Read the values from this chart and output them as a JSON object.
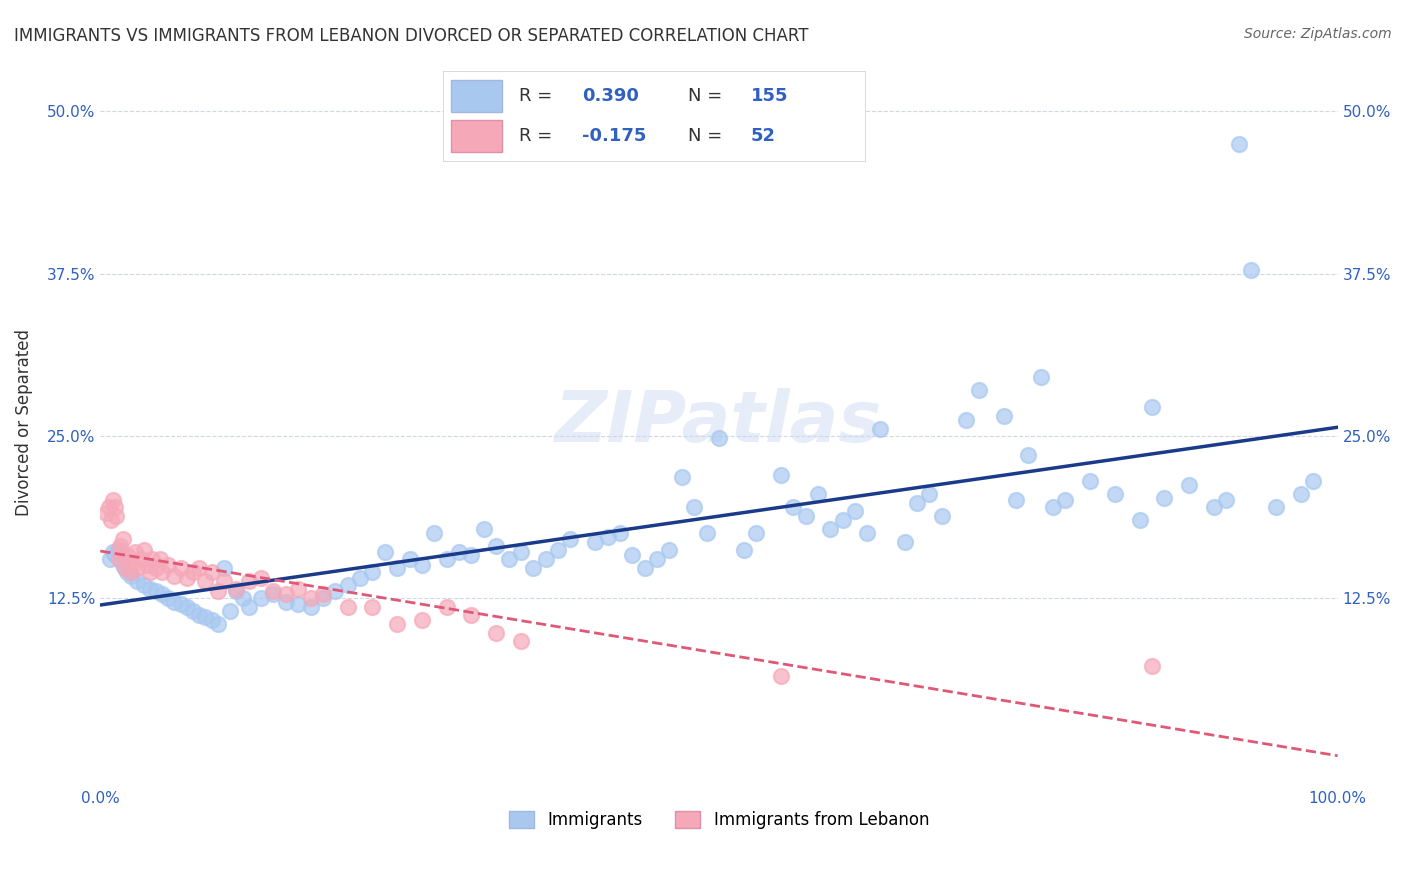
{
  "title": "IMMIGRANTS VS IMMIGRANTS FROM LEBANON DIVORCED OR SEPARATED CORRELATION CHART",
  "source": "Source: ZipAtlas.com",
  "ylabel": "Divorced or Separated",
  "xlabel_ticks": [
    "0.0%",
    "100.0%"
  ],
  "ylabel_ticks": [
    "12.5%",
    "25.0%",
    "37.5%",
    "50.0%"
  ],
  "r_blue": 0.39,
  "n_blue": 155,
  "r_pink": -0.175,
  "n_pink": 52,
  "blue_color": "#a8c8f0",
  "pink_color": "#f5a8b8",
  "blue_line_color": "#1a3a8a",
  "pink_line_color": "#e05878",
  "background_color": "#ffffff",
  "grid_color": "#d0d8e8",
  "watermark": "ZIPatlas",
  "legend_labels": [
    "Immigrants",
    "Immigrants from Lebanon"
  ],
  "xlim": [
    0.0,
    1.0
  ],
  "ylim": [
    -0.02,
    0.54
  ],
  "blue_scatter_x": [
    0.008,
    0.01,
    0.012,
    0.014,
    0.016,
    0.018,
    0.02,
    0.022,
    0.025,
    0.03,
    0.035,
    0.04,
    0.045,
    0.05,
    0.055,
    0.06,
    0.065,
    0.07,
    0.075,
    0.08,
    0.085,
    0.09,
    0.095,
    0.1,
    0.105,
    0.11,
    0.115,
    0.12,
    0.13,
    0.14,
    0.15,
    0.16,
    0.17,
    0.18,
    0.19,
    0.2,
    0.21,
    0.22,
    0.23,
    0.24,
    0.25,
    0.26,
    0.27,
    0.28,
    0.29,
    0.3,
    0.31,
    0.32,
    0.33,
    0.34,
    0.35,
    0.36,
    0.37,
    0.38,
    0.4,
    0.41,
    0.42,
    0.43,
    0.44,
    0.45,
    0.46,
    0.47,
    0.48,
    0.49,
    0.5,
    0.52,
    0.53,
    0.55,
    0.56,
    0.57,
    0.58,
    0.59,
    0.6,
    0.61,
    0.62,
    0.63,
    0.65,
    0.66,
    0.67,
    0.68,
    0.7,
    0.71,
    0.73,
    0.74,
    0.75,
    0.76,
    0.77,
    0.78,
    0.8,
    0.82,
    0.84,
    0.85,
    0.86,
    0.88,
    0.9,
    0.91,
    0.92,
    0.93,
    0.95,
    0.97,
    0.98
  ],
  "blue_scatter_y": [
    0.155,
    0.16,
    0.158,
    0.162,
    0.155,
    0.15,
    0.148,
    0.145,
    0.142,
    0.138,
    0.135,
    0.132,
    0.13,
    0.128,
    0.125,
    0.122,
    0.12,
    0.118,
    0.115,
    0.112,
    0.11,
    0.108,
    0.105,
    0.148,
    0.115,
    0.13,
    0.125,
    0.118,
    0.125,
    0.128,
    0.122,
    0.12,
    0.118,
    0.125,
    0.13,
    0.135,
    0.14,
    0.145,
    0.16,
    0.148,
    0.155,
    0.15,
    0.175,
    0.155,
    0.16,
    0.158,
    0.178,
    0.165,
    0.155,
    0.16,
    0.148,
    0.155,
    0.162,
    0.17,
    0.168,
    0.172,
    0.175,
    0.158,
    0.148,
    0.155,
    0.162,
    0.218,
    0.195,
    0.175,
    0.248,
    0.162,
    0.175,
    0.22,
    0.195,
    0.188,
    0.205,
    0.178,
    0.185,
    0.192,
    0.175,
    0.255,
    0.168,
    0.198,
    0.205,
    0.188,
    0.262,
    0.285,
    0.265,
    0.2,
    0.235,
    0.295,
    0.195,
    0.2,
    0.215,
    0.205,
    0.185,
    0.272,
    0.202,
    0.212,
    0.195,
    0.2,
    0.475,
    0.378,
    0.195,
    0.205,
    0.215
  ],
  "pink_scatter_x": [
    0.005,
    0.007,
    0.009,
    0.01,
    0.012,
    0.013,
    0.015,
    0.016,
    0.017,
    0.018,
    0.02,
    0.022,
    0.024,
    0.025,
    0.028,
    0.03,
    0.033,
    0.035,
    0.038,
    0.04,
    0.042,
    0.045,
    0.048,
    0.05,
    0.055,
    0.06,
    0.065,
    0.07,
    0.075,
    0.08,
    0.085,
    0.09,
    0.095,
    0.1,
    0.11,
    0.12,
    0.13,
    0.14,
    0.15,
    0.16,
    0.17,
    0.18,
    0.2,
    0.22,
    0.24,
    0.26,
    0.28,
    0.3,
    0.32,
    0.34,
    0.55,
    0.85
  ],
  "pink_scatter_y": [
    0.19,
    0.195,
    0.185,
    0.2,
    0.195,
    0.188,
    0.155,
    0.165,
    0.16,
    0.17,
    0.148,
    0.158,
    0.152,
    0.145,
    0.16,
    0.148,
    0.155,
    0.162,
    0.15,
    0.145,
    0.155,
    0.148,
    0.155,
    0.145,
    0.15,
    0.142,
    0.148,
    0.14,
    0.145,
    0.148,
    0.138,
    0.145,
    0.13,
    0.138,
    0.132,
    0.138,
    0.14,
    0.13,
    0.128,
    0.132,
    0.125,
    0.128,
    0.118,
    0.118,
    0.105,
    0.108,
    0.118,
    0.112,
    0.098,
    0.092,
    0.065,
    0.072
  ]
}
